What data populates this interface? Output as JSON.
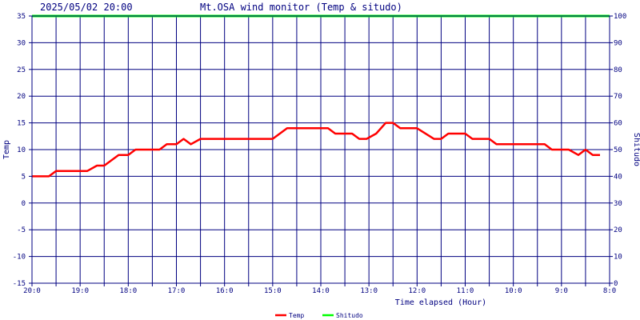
{
  "header": {
    "timestamp": "2025/05/02 20:00",
    "title": "Mt.OSA wind monitor (Temp & situdo)"
  },
  "chart_data": {
    "type": "line",
    "xlabel": "Time elapsed (Hour)",
    "ylabel_left": "Temp",
    "ylabel_right": "Shitudo",
    "ylim_left": [
      -15,
      35
    ],
    "ylim_right": [
      0,
      100
    ],
    "yticks_left": [
      "-15",
      "-10",
      "-5",
      "0",
      "5",
      "10",
      "15",
      "20",
      "25",
      "30",
      "35"
    ],
    "yticks_right": [
      "0",
      "10",
      "20",
      "30",
      "40",
      "50",
      "60",
      "70",
      "80",
      "90",
      "100"
    ],
    "xlim_hours": [
      0,
      24
    ],
    "xticks": [
      {
        "hours": 0,
        "label": "20:0"
      },
      {
        "hours": 2,
        "label": "19:0"
      },
      {
        "hours": 4,
        "label": "18:0"
      },
      {
        "hours": 6,
        "label": "17:0"
      },
      {
        "hours": 8,
        "label": "16:0"
      },
      {
        "hours": 10,
        "label": "15:0"
      },
      {
        "hours": 12,
        "label": "14:0"
      },
      {
        "hours": 14,
        "label": "13:0"
      },
      {
        "hours": 16,
        "label": "12:0"
      },
      {
        "hours": 18,
        "label": "11:0"
      },
      {
        "hours": 20,
        "label": "10:0"
      },
      {
        "hours": 22,
        "label": "9:0"
      },
      {
        "hours": 24,
        "label": "8:0"
      }
    ],
    "grid": true,
    "legend_position": "bottom-center",
    "series": [
      {
        "name": "Temp",
        "axis": "left",
        "color": "#ff0000",
        "points": [
          [
            0,
            5
          ],
          [
            0.7,
            5
          ],
          [
            1.0,
            6
          ],
          [
            2.3,
            6
          ],
          [
            2.7,
            7
          ],
          [
            3.0,
            7
          ],
          [
            3.6,
            9
          ],
          [
            4.0,
            9
          ],
          [
            4.3,
            10
          ],
          [
            5.3,
            10
          ],
          [
            5.6,
            11
          ],
          [
            6.0,
            11
          ],
          [
            6.3,
            12
          ],
          [
            6.6,
            11
          ],
          [
            7.0,
            12
          ],
          [
            10.0,
            12
          ],
          [
            10.6,
            14
          ],
          [
            12.3,
            14
          ],
          [
            12.6,
            13
          ],
          [
            13.3,
            13
          ],
          [
            13.6,
            12
          ],
          [
            13.9,
            12
          ],
          [
            14.3,
            13
          ],
          [
            14.7,
            15
          ],
          [
            15.0,
            15
          ],
          [
            15.3,
            14
          ],
          [
            16.0,
            14
          ],
          [
            16.7,
            12
          ],
          [
            17.0,
            12
          ],
          [
            17.3,
            13
          ],
          [
            18.0,
            13
          ],
          [
            18.3,
            12
          ],
          [
            19.0,
            12
          ],
          [
            19.3,
            11
          ],
          [
            21.3,
            11
          ],
          [
            21.6,
            10
          ],
          [
            22.3,
            10
          ],
          [
            22.7,
            9
          ],
          [
            23.0,
            10
          ],
          [
            23.3,
            9
          ],
          [
            23.6,
            9
          ]
        ]
      },
      {
        "name": "Shitudo",
        "axis": "right",
        "color": "#00ff00",
        "points": [
          [
            0,
            100
          ],
          [
            24,
            100
          ]
        ]
      }
    ]
  }
}
